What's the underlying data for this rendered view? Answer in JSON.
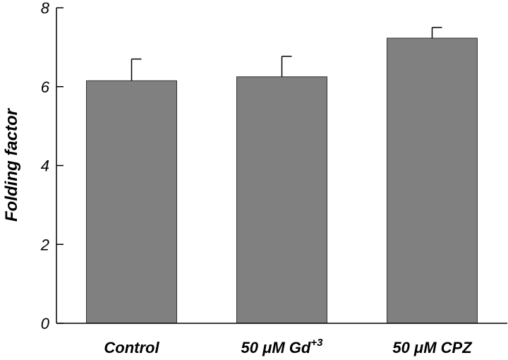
{
  "chart_data": {
    "type": "bar",
    "title": "",
    "xlabel": "",
    "ylabel": "Folding factor",
    "ylim": [
      0,
      8
    ],
    "yticks": [
      0,
      2,
      4,
      6,
      8
    ],
    "grid": false,
    "categories": [
      {
        "main": "Control",
        "sup": ""
      },
      {
        "main": "50 μM Gd",
        "sup": "+3"
      },
      {
        "main": "50 μM CPZ",
        "sup": ""
      }
    ],
    "values": [
      6.15,
      6.25,
      7.23
    ],
    "errors": [
      0.55,
      0.52,
      0.27
    ],
    "bar_color": "#808080",
    "bar_edge_color": "#333333"
  }
}
